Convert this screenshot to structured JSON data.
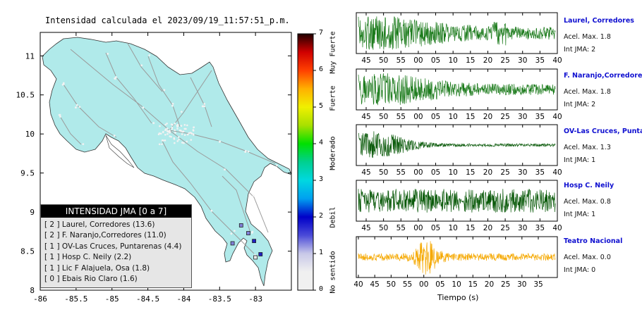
{
  "title": "Intensidad calculada el 2023/09/19_11:57:51_p.m.",
  "map": {
    "x_ticks": [
      "-86",
      "-85.5",
      "-85",
      "-84.5",
      "-84",
      "-83.5",
      "-83"
    ],
    "y_ticks": [
      "11",
      "10.5",
      "10",
      "9.5",
      "9",
      "8.5",
      "8"
    ],
    "land_color": "#b0eaea",
    "sea_color": "#ffffff"
  },
  "colorbar": {
    "ticks": [
      "7",
      "6",
      "5",
      "4",
      "3",
      "2",
      "1",
      "0"
    ],
    "categories": [
      "Muy Fuerte",
      "Fuerte",
      "Moderado",
      "Debil",
      "No sentido"
    ]
  },
  "legend": {
    "header": "INTENSIDAD JMA [0 a 7]",
    "items": [
      "[ 2 ]  Laurel, Corredores (13.6)",
      "[ 2 ]  F. Naranjo,Corredores (11.0)",
      "[ 1 ]  OV-Las Cruces, Puntarenas (4.4)",
      "[ 1 ]  Hosp C. Neily (2.2)",
      "[ 1 ]  Lic F Alajuela, Osa (1.8)",
      "[ 0 ]  Ebais Rio Claro (1.6)"
    ]
  },
  "stations": [
    {
      "name": "Laurel, Corredores",
      "accel": "Acel. Max. 1.8",
      "int": "Int JMA: 2",
      "color": "#1a7a1a",
      "ticks": [
        "45",
        "50",
        "55",
        "00",
        "05",
        "10",
        "15",
        "20",
        "25",
        "30",
        "35",
        "40"
      ]
    },
    {
      "name": "F. Naranjo,Corredores",
      "accel": "Acel. Max. 1.8",
      "int": "Int JMA: 2",
      "color": "#1a7a1a",
      "ticks": [
        "45",
        "50",
        "55",
        "00",
        "05",
        "10",
        "15",
        "20",
        "25",
        "30",
        "35",
        "40"
      ]
    },
    {
      "name": "OV-Las Cruces, Puntar",
      "accel": "Acel. Max. 1.3",
      "int": "Int JMA: 1",
      "color": "#0a5a0a",
      "ticks": [
        "45",
        "50",
        "55",
        "00",
        "05",
        "10",
        "15",
        "20",
        "25",
        "30",
        "35",
        "40"
      ]
    },
    {
      "name": "Hosp C. Neily",
      "accel": "Acel. Max. 0.8",
      "int": "Int JMA: 1",
      "color": "#0a5a0a",
      "ticks": [
        "45",
        "50",
        "55",
        "00",
        "05",
        "10",
        "15",
        "20",
        "25",
        "30",
        "35",
        "40"
      ]
    },
    {
      "name": "Teatro Nacional",
      "accel": "Acel. Max. 0.0",
      "int": "Int JMA: 0",
      "color": "#f5a800",
      "ticks": [
        "40",
        "45",
        "50",
        "55",
        "00",
        "05",
        "10",
        "15",
        "20",
        "25",
        "30",
        "35"
      ]
    }
  ],
  "time_axis_label": "Tiempo (s)",
  "chart_data": [
    {
      "type": "scatter",
      "title": "Intensidad calculada el 2023/09/19_11:57:51_p.m.",
      "xlim": [
        -86,
        -82.5
      ],
      "ylim": [
        8,
        11.3
      ],
      "points": [
        {
          "x": -82.93,
          "y": 8.46,
          "value": 2
        },
        {
          "x": -83.02,
          "y": 8.63,
          "value": 2
        },
        {
          "x": -83.2,
          "y": 8.83,
          "value": 1
        },
        {
          "x": -83.1,
          "y": 8.73,
          "value": 1
        },
        {
          "x": -83.32,
          "y": 8.6,
          "value": 1
        },
        {
          "x": -83.0,
          "y": 8.42,
          "value": 0
        }
      ]
    },
    {
      "type": "line",
      "xlabel": "Tiempo (s)",
      "series": [
        {
          "name": "Laurel, Corredores"
        },
        {
          "name": "F. Naranjo,Corredores"
        },
        {
          "name": "OV-Las Cruces, Puntar"
        },
        {
          "name": "Hosp C. Neily"
        },
        {
          "name": "Teatro Nacional"
        }
      ]
    }
  ]
}
